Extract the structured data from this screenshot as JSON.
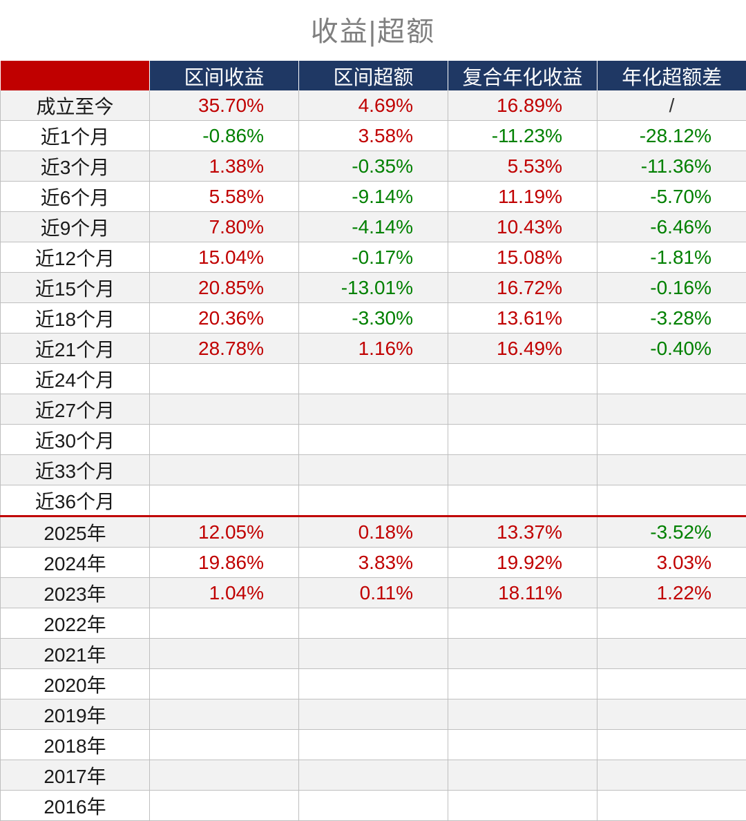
{
  "title": "收益|超额",
  "colors": {
    "header_bg": "#1f3864",
    "corner": "#c00000",
    "positive": "#c00000",
    "negative": "#008000"
  },
  "headers": [
    "区间收益",
    "区间超额",
    "复合年化收益",
    "年化超额差"
  ],
  "rows": [
    {
      "label": "成立至今",
      "values": [
        "35.70%",
        "4.69%",
        "16.89%",
        "/"
      ]
    },
    {
      "label": "近1个月",
      "values": [
        "-0.86%",
        "3.58%",
        "-11.23%",
        "-28.12%"
      ]
    },
    {
      "label": "近3个月",
      "values": [
        "1.38%",
        "-0.35%",
        "5.53%",
        "-11.36%"
      ]
    },
    {
      "label": "近6个月",
      "values": [
        "5.58%",
        "-9.14%",
        "11.19%",
        "-5.70%"
      ]
    },
    {
      "label": "近9个月",
      "values": [
        "7.80%",
        "-4.14%",
        "10.43%",
        "-6.46%"
      ]
    },
    {
      "label": "近12个月",
      "values": [
        "15.04%",
        "-0.17%",
        "15.08%",
        "-1.81%"
      ]
    },
    {
      "label": "近15个月",
      "values": [
        "20.85%",
        "-13.01%",
        "16.72%",
        "-0.16%"
      ]
    },
    {
      "label": "近18个月",
      "values": [
        "20.36%",
        "-3.30%",
        "13.61%",
        "-3.28%"
      ]
    },
    {
      "label": "近21个月",
      "values": [
        "28.78%",
        "1.16%",
        "16.49%",
        "-0.40%"
      ]
    },
    {
      "label": "近24个月",
      "values": [
        "",
        "",
        "",
        ""
      ]
    },
    {
      "label": "近27个月",
      "values": [
        "",
        "",
        "",
        ""
      ]
    },
    {
      "label": "近30个月",
      "values": [
        "",
        "",
        "",
        ""
      ]
    },
    {
      "label": "近33个月",
      "values": [
        "",
        "",
        "",
        ""
      ]
    },
    {
      "label": "近36个月",
      "values": [
        "",
        "",
        "",
        ""
      ]
    },
    {
      "label": "2025年",
      "values": [
        "12.05%",
        "0.18%",
        "13.37%",
        "-3.52%"
      ],
      "separator": true
    },
    {
      "label": "2024年",
      "values": [
        "19.86%",
        "3.83%",
        "19.92%",
        "3.03%"
      ]
    },
    {
      "label": "2023年",
      "values": [
        "1.04%",
        "0.11%",
        "18.11%",
        "1.22%"
      ]
    },
    {
      "label": "2022年",
      "values": [
        "",
        "",
        "",
        ""
      ]
    },
    {
      "label": "2021年",
      "values": [
        "",
        "",
        "",
        ""
      ]
    },
    {
      "label": "2020年",
      "values": [
        "",
        "",
        "",
        ""
      ]
    },
    {
      "label": "2019年",
      "values": [
        "",
        "",
        "",
        ""
      ]
    },
    {
      "label": "2018年",
      "values": [
        "",
        "",
        "",
        ""
      ]
    },
    {
      "label": "2017年",
      "values": [
        "",
        "",
        "",
        ""
      ]
    },
    {
      "label": "2016年",
      "values": [
        "",
        "",
        "",
        ""
      ]
    }
  ]
}
